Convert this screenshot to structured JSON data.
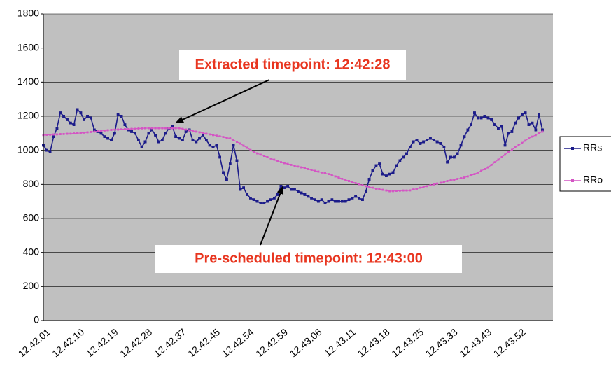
{
  "chart_data": {
    "type": "line",
    "categories": [
      "12.42.01",
      null,
      null,
      null,
      null,
      null,
      null,
      null,
      null,
      null,
      "12.42.10",
      null,
      null,
      null,
      null,
      null,
      null,
      null,
      null,
      null,
      "12.42.19",
      null,
      null,
      null,
      null,
      null,
      null,
      null,
      null,
      null,
      "12.42.28",
      null,
      null,
      null,
      null,
      null,
      null,
      null,
      null,
      null,
      "12.42.37",
      null,
      null,
      null,
      null,
      null,
      null,
      null,
      null,
      null,
      "12.42.45",
      null,
      null,
      null,
      null,
      null,
      null,
      null,
      null,
      null,
      "12.42.54",
      null,
      null,
      null,
      null,
      null,
      null,
      null,
      null,
      null,
      "12.42.59",
      null,
      null,
      null,
      null,
      null,
      null,
      null,
      null,
      null,
      "12.43.06",
      null,
      null,
      null,
      null,
      null,
      null,
      null,
      null,
      null,
      "12.43.11",
      null,
      null,
      null,
      null,
      null,
      null,
      null,
      null,
      null,
      "12.43.18",
      null,
      null,
      null,
      null,
      null,
      null,
      null,
      null,
      null,
      "12.43.25",
      null,
      null,
      null,
      null,
      null,
      null,
      null,
      null,
      null,
      "12.43.33",
      null,
      null,
      null,
      null,
      null,
      null,
      null,
      null,
      null,
      "12.43.43",
      null,
      null,
      null,
      null,
      null,
      null,
      null,
      null,
      null,
      "12.43.52",
      null,
      null,
      null,
      null,
      null,
      null,
      null
    ],
    "series": [
      {
        "name": "RRs",
        "color": "#1c1c8a",
        "values": [
          1030,
          1000,
          990,
          1080,
          1130,
          1220,
          1200,
          1180,
          1160,
          1150,
          1240,
          1220,
          1180,
          1200,
          1190,
          1120,
          1110,
          1100,
          1080,
          1070,
          1060,
          1100,
          1210,
          1200,
          1150,
          1120,
          1110,
          1100,
          1060,
          1020,
          1050,
          1100,
          1120,
          1090,
          1050,
          1060,
          1100,
          1130,
          1140,
          1080,
          1070,
          1060,
          1110,
          1120,
          1060,
          1050,
          1070,
          1090,
          1060,
          1030,
          1020,
          1030,
          960,
          870,
          830,
          920,
          1030,
          940,
          770,
          780,
          740,
          720,
          710,
          700,
          690,
          690,
          700,
          710,
          720,
          740,
          790,
          780,
          790,
          770,
          770,
          760,
          750,
          740,
          730,
          720,
          710,
          700,
          710,
          690,
          700,
          710,
          700,
          700,
          700,
          700,
          710,
          720,
          730,
          720,
          710,
          760,
          830,
          880,
          910,
          920,
          860,
          850,
          860,
          870,
          910,
          940,
          960,
          980,
          1020,
          1050,
          1060,
          1040,
          1050,
          1060,
          1070,
          1060,
          1050,
          1040,
          1020,
          930,
          960,
          960,
          980,
          1030,
          1080,
          1120,
          1150,
          1220,
          1190,
          1190,
          1200,
          1190,
          1180,
          1150,
          1130,
          1140,
          1030,
          1100,
          1110,
          1160,
          1190,
          1210,
          1220,
          1150,
          1160,
          1120,
          1210,
          1120
        ]
      },
      {
        "name": "RRo",
        "color": "#d455c4",
        "values": [
          1090,
          1091,
          1092,
          1093,
          1094,
          1095,
          1096,
          1097,
          1098,
          1099,
          1100,
          1102,
          1104,
          1106,
          1108,
          1110,
          1112,
          1114,
          1116,
          1118,
          1120,
          1121,
          1122,
          1123,
          1124,
          1125,
          1126,
          1127,
          1128,
          1129,
          1130,
          1130,
          1130,
          1130,
          1130,
          1130,
          1130,
          1130,
          1130,
          1130,
          1130,
          1126,
          1122,
          1118,
          1114,
          1110,
          1106,
          1102,
          1098,
          1094,
          1090,
          1086,
          1082,
          1078,
          1074,
          1070,
          1060,
          1050,
          1040,
          1027,
          1015,
          1002,
          990,
          982,
          975,
          967,
          960,
          952,
          945,
          937,
          930,
          925,
          920,
          915,
          910,
          905,
          900,
          895,
          890,
          885,
          880,
          875,
          870,
          865,
          860,
          853,
          847,
          840,
          833,
          827,
          820,
          814,
          808,
          801,
          795,
          790,
          785,
          780,
          775,
          771,
          768,
          764,
          760,
          761,
          762,
          763,
          764,
          764,
          765,
          770,
          775,
          780,
          785,
          790,
          795,
          800,
          805,
          810,
          815,
          820,
          824,
          828,
          832,
          836,
          840,
          847,
          853,
          860,
          870,
          880,
          890,
          900,
          915,
          930,
          945,
          960,
          975,
          990,
          1003,
          1017,
          1030,
          1043,
          1057,
          1070,
          1080,
          1090,
          1100,
          1110
        ]
      }
    ],
    "ylim": [
      0,
      1800
    ],
    "yticks": [
      0,
      200,
      400,
      600,
      800,
      1000,
      1200,
      1400,
      1600,
      1800
    ],
    "grid": true,
    "annotations": [
      "Extracted timepoint: 12:42:28",
      "Pre-scheduled timepoint: 12:43:00"
    ]
  }
}
